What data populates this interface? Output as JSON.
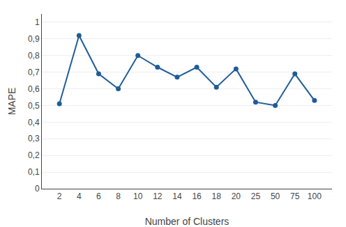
{
  "chart_data": {
    "type": "line",
    "categories": [
      "2",
      "4",
      "6",
      "8",
      "10",
      "12",
      "14",
      "16",
      "18",
      "20",
      "25",
      "50",
      "75",
      "100"
    ],
    "values": [
      0.51,
      0.92,
      0.69,
      0.6,
      0.8,
      0.73,
      0.67,
      0.73,
      0.61,
      0.72,
      0.52,
      0.5,
      0.69,
      0.53
    ],
    "xlabel": "Number of Clusters",
    "ylabel": "MAPE",
    "ylim": [
      0,
      1.05
    ],
    "yticks": [
      0,
      {
        "value": 0.1,
        "label": "0,1"
      },
      {
        "value": 0.2,
        "label": "0,2"
      },
      {
        "value": 0.3,
        "label": "0,3"
      },
      {
        "value": 0.4,
        "label": "0,4"
      },
      {
        "value": 0.5,
        "label": "0,5"
      },
      {
        "value": 0.6,
        "label": "0,6"
      },
      {
        "value": 0.7,
        "label": "0,7"
      },
      {
        "value": 0.8,
        "label": "0,8"
      },
      {
        "value": 0.9,
        "label": "0,9"
      },
      1
    ],
    "color": "#1F5C99",
    "marker": "circle",
    "grid": true
  }
}
